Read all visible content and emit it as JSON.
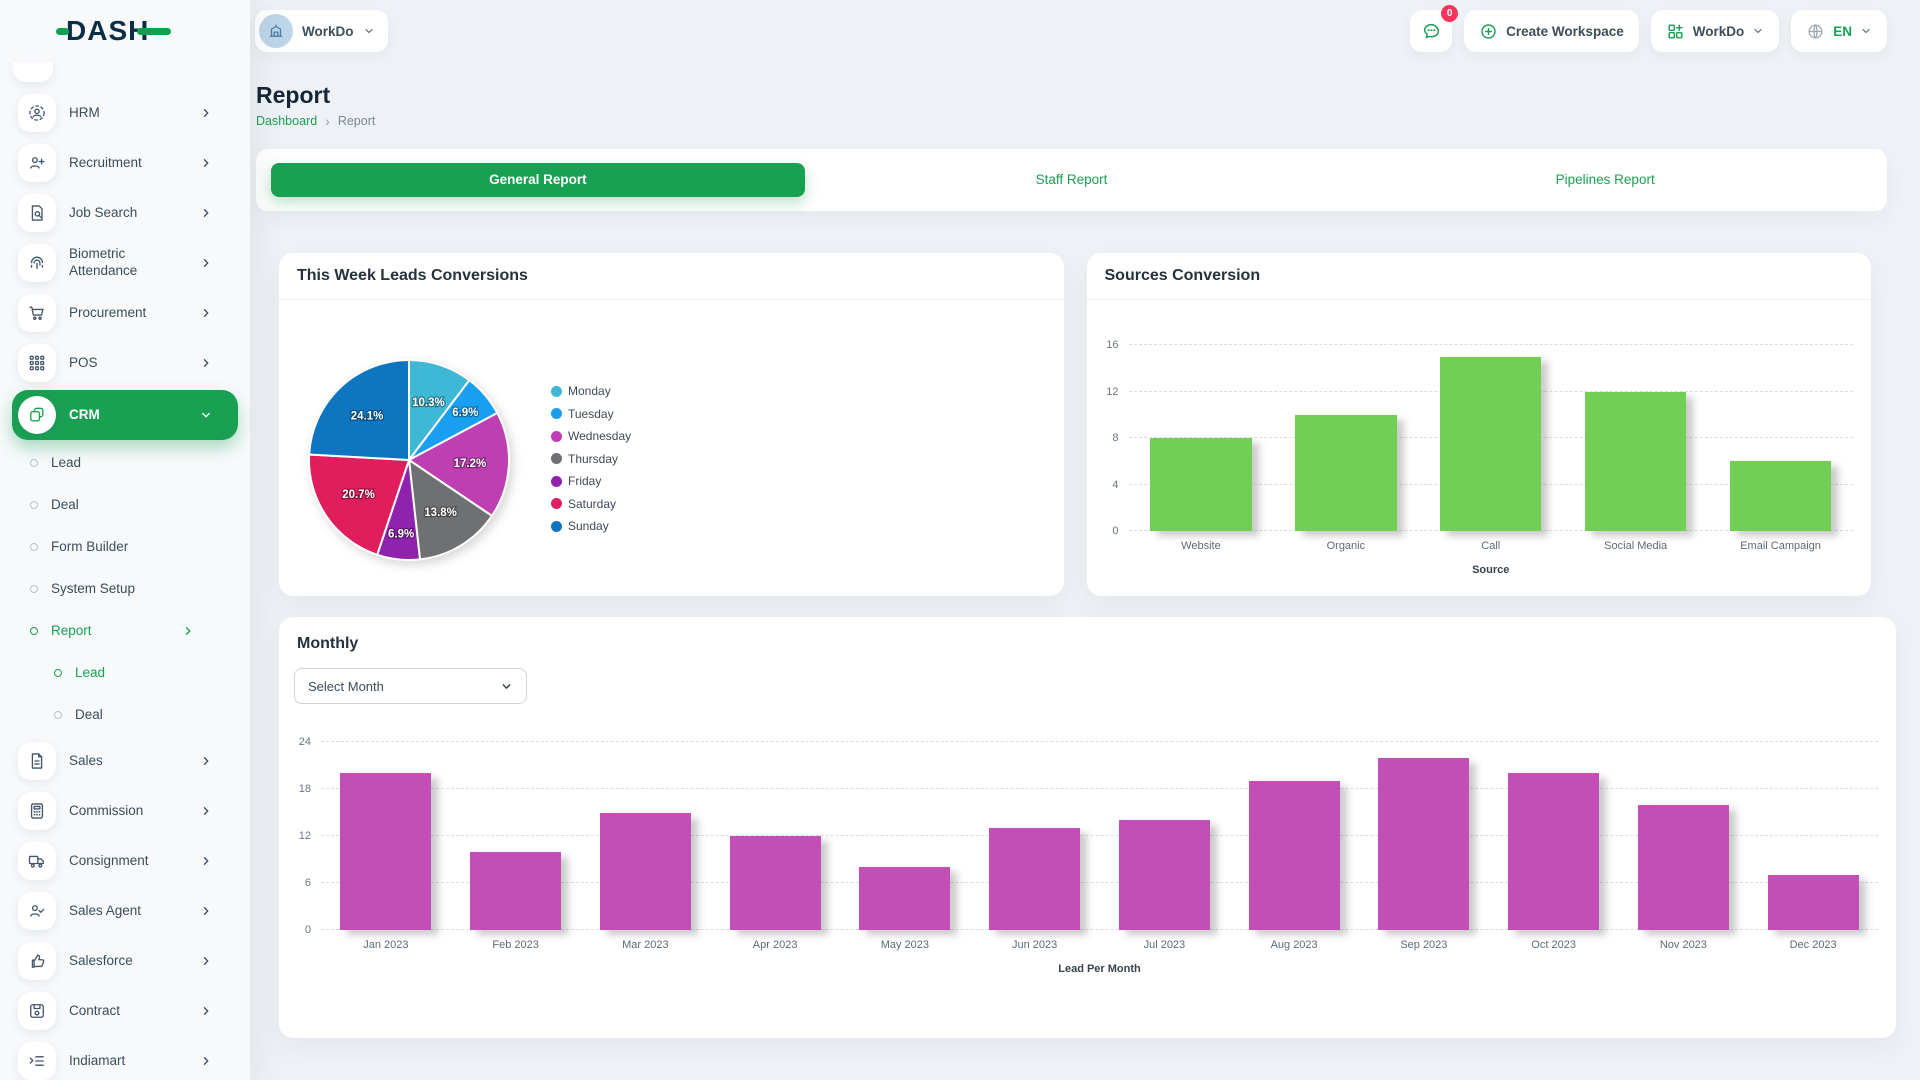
{
  "brand": {
    "logo_text": "DASH"
  },
  "header": {
    "workspace_left": {
      "label": "WorkDo"
    },
    "messages_badge": "0",
    "create_workspace_label": "Create Workspace",
    "workspace_right": {
      "label": "WorkDo"
    },
    "language": {
      "label": "EN"
    }
  },
  "sidebar": {
    "items": [
      {
        "label": "HRM",
        "depth": 0,
        "icon": "hrm-icon",
        "chevron": "right"
      },
      {
        "label": "Recruitment",
        "depth": 0,
        "icon": "recruitment-icon",
        "chevron": "right"
      },
      {
        "label": "Job Search",
        "depth": 0,
        "icon": "job-search-icon",
        "chevron": "right"
      },
      {
        "label": "Biometric Attendance",
        "depth": 0,
        "icon": "biometric-icon",
        "chevron": "right"
      },
      {
        "label": "Procurement",
        "depth": 0,
        "icon": "procurement-icon",
        "chevron": "right"
      },
      {
        "label": "POS",
        "depth": 0,
        "icon": "pos-icon",
        "chevron": "right"
      },
      {
        "label": "CRM",
        "depth": 0,
        "icon": "crm-icon",
        "chevron": "down",
        "active": true
      },
      {
        "label": "Lead",
        "depth": 1
      },
      {
        "label": "Deal",
        "depth": 1
      },
      {
        "label": "Form Builder",
        "depth": 1
      },
      {
        "label": "System Setup",
        "depth": 1
      },
      {
        "label": "Report",
        "depth": 1,
        "chevron": "right",
        "active": true
      },
      {
        "label": "Lead",
        "depth": 2,
        "active": true
      },
      {
        "label": "Deal",
        "depth": 2
      },
      {
        "label": "Sales",
        "depth": 0,
        "icon": "sales-icon",
        "chevron": "right"
      },
      {
        "label": "Commission",
        "depth": 0,
        "icon": "commission-icon",
        "chevron": "right"
      },
      {
        "label": "Consignment",
        "depth": 0,
        "icon": "consignment-icon",
        "chevron": "right"
      },
      {
        "label": "Sales Agent",
        "depth": 0,
        "icon": "sales-agent-icon",
        "chevron": "right"
      },
      {
        "label": "Salesforce",
        "depth": 0,
        "icon": "salesforce-icon",
        "chevron": "right"
      },
      {
        "label": "Contract",
        "depth": 0,
        "icon": "contract-icon",
        "chevron": "right"
      },
      {
        "label": "Indiamart",
        "depth": 0,
        "icon": "indiamart-icon",
        "chevron": "right"
      }
    ]
  },
  "page": {
    "title": "Report",
    "breadcrumb": [
      "Dashboard",
      "Report"
    ]
  },
  "tabs": [
    {
      "label": "General Report",
      "active": true
    },
    {
      "label": "Staff Report"
    },
    {
      "label": "Pipelines Report"
    }
  ],
  "cards": {
    "pie_card_title": "This Week Leads Conversions",
    "bar_card_title": "Sources Conversion",
    "monthly_title": "Monthly",
    "select_month_placeholder": "Select Month"
  },
  "colors": {
    "accent_green": "#1aa053",
    "bar_green": "#70cf54",
    "bar_magenta": "#c14fb5",
    "badge_red": "#f5365c",
    "logo_navy": "#0c2e44"
  },
  "chart_data": [
    {
      "type": "pie",
      "title": "This Week Leads Conversions",
      "labels": [
        "Monday",
        "Tuesday",
        "Wednesday",
        "Thursday",
        "Friday",
        "Saturday",
        "Sunday"
      ],
      "values": [
        10.3,
        6.9,
        17.2,
        13.8,
        6.9,
        20.7,
        24.1
      ],
      "value_labels": [
        "10.3%",
        "6.9%",
        "17.2%",
        "13.8%",
        "6.9%",
        "20.7%",
        "24.1%"
      ],
      "colors": [
        "#3fb8d5",
        "#199ff0",
        "#bf3fb3",
        "#6f7072",
        "#8f23ad",
        "#e01e5e",
        "#0e76c1"
      ],
      "legend_position": "right"
    },
    {
      "type": "bar",
      "title": "Sources Conversion",
      "categories": [
        "Website",
        "Organic",
        "Call",
        "Social Media",
        "Email Campaign"
      ],
      "values": [
        8,
        10,
        15,
        12,
        6
      ],
      "xlabel": "Source",
      "ylabel": "",
      "ylim": [
        0,
        16
      ],
      "yticks": [
        0,
        4,
        8,
        12,
        16
      ],
      "bar_color": "#70cf54",
      "grid": "dashed horizontal",
      "legend_position": "none"
    },
    {
      "type": "bar",
      "title": "Monthly",
      "categories": [
        "Jan 2023",
        "Feb 2023",
        "Mar 2023",
        "Apr 2023",
        "May 2023",
        "Jun 2023",
        "Jul 2023",
        "Aug 2023",
        "Sep 2023",
        "Oct 2023",
        "Nov 2023",
        "Dec 2023"
      ],
      "values": [
        20,
        10,
        15,
        12,
        8,
        13,
        14,
        19,
        22,
        20,
        16,
        7
      ],
      "xlabel": "Lead Per Month",
      "ylabel": "",
      "ylim": [
        0,
        24
      ],
      "yticks": [
        0,
        6,
        12,
        18,
        24
      ],
      "bar_color": "#c14fb5",
      "grid": "dashed horizontal",
      "legend_position": "none"
    }
  ]
}
